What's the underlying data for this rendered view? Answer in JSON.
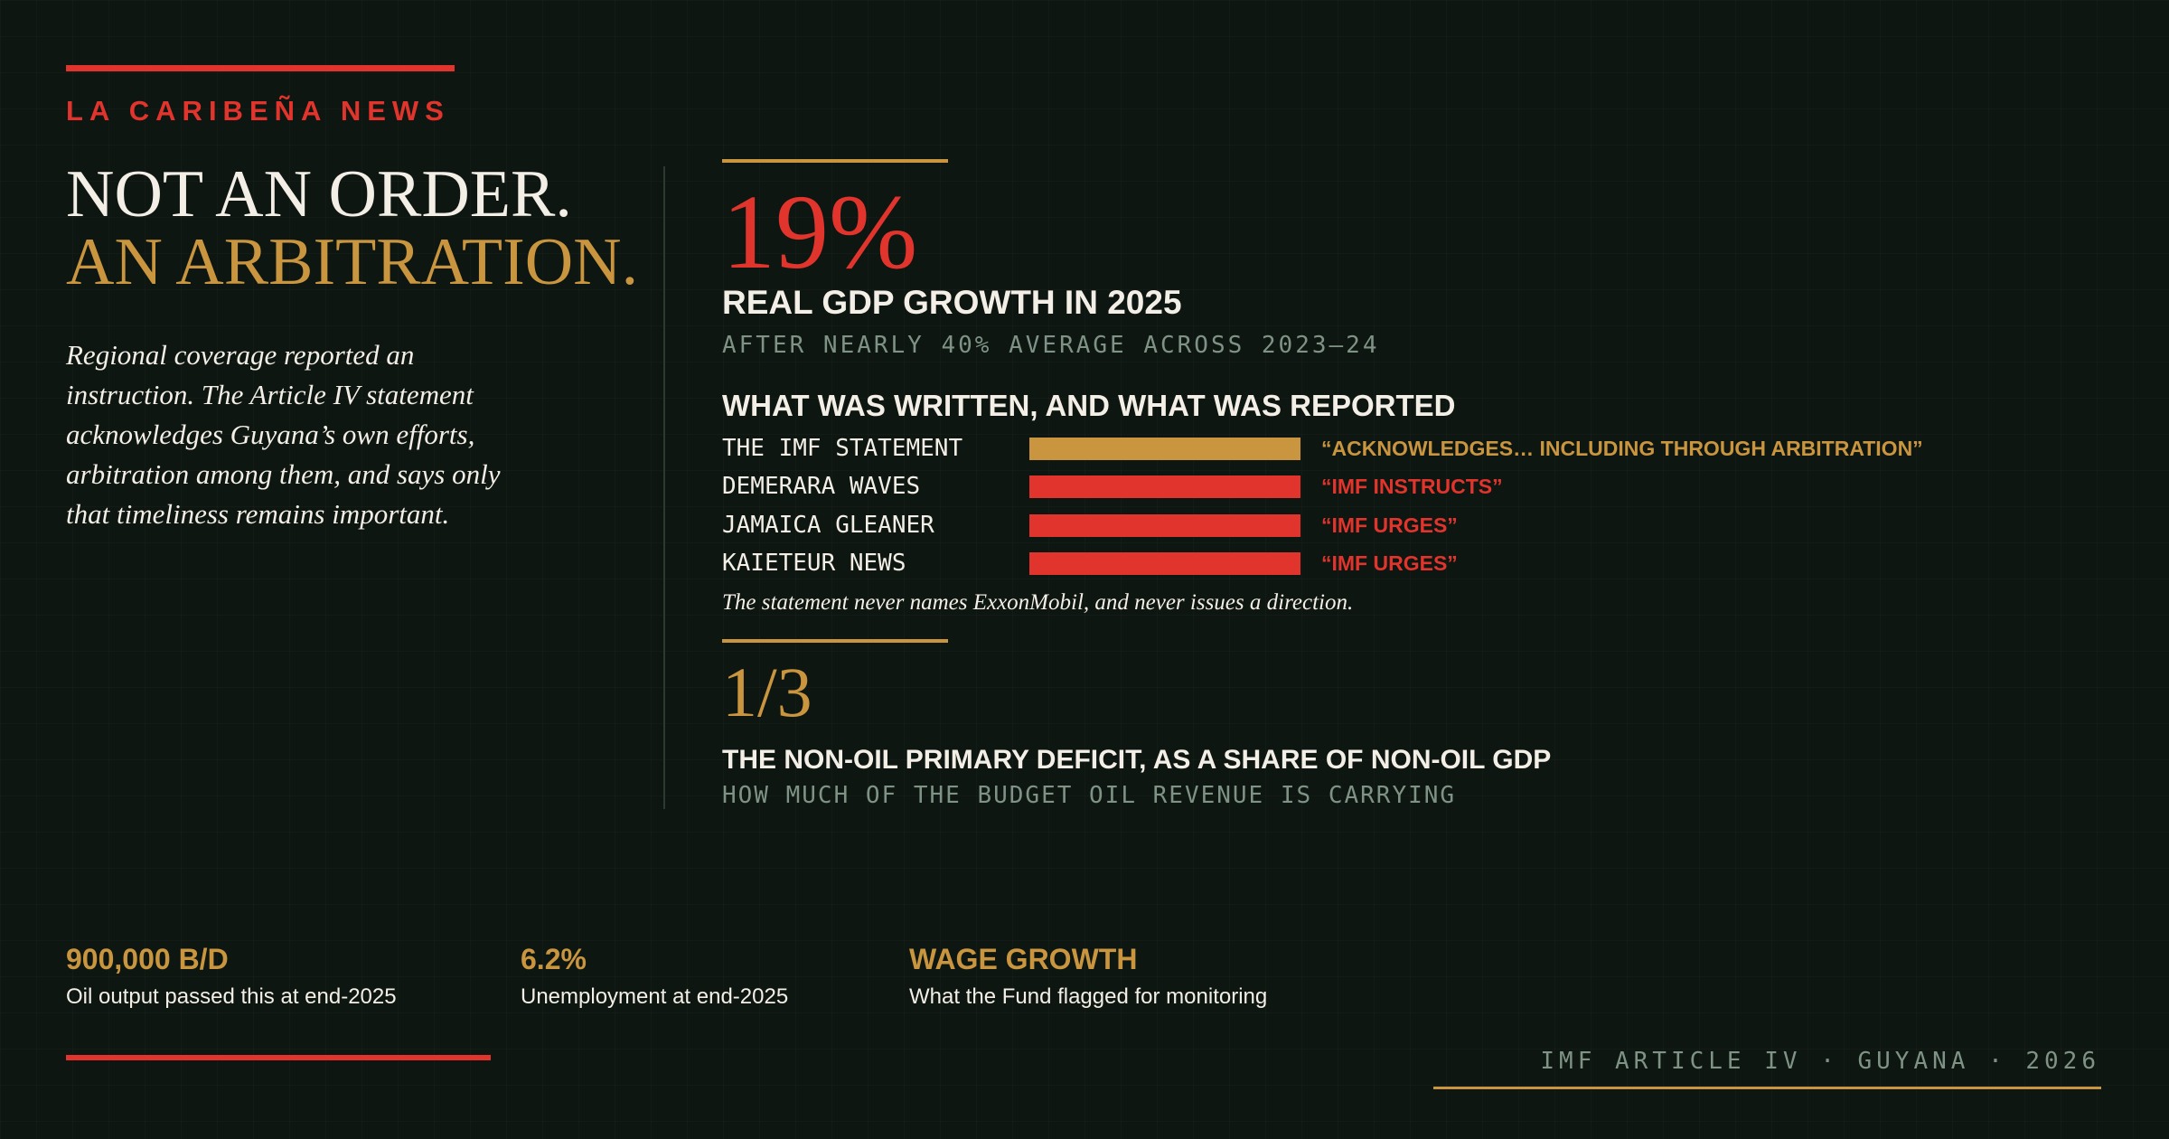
{
  "brand": "LA CARIBEÑA NEWS",
  "headline": {
    "line1": "NOT AN ORDER.",
    "line2": "AN ARBITRATION."
  },
  "deck": "Regional coverage reported an instruction. The Article IV statement acknowledges Guyana’s own efforts, arbitration among them, and says only that timeliness remains important.",
  "stat1": {
    "value": "19%",
    "label": "REAL GDP GROWTH IN 2025",
    "note": "AFTER NEARLY 40% AVERAGE ACROSS 2023–24"
  },
  "comparison": {
    "title": "WHAT WAS WRITTEN, AND WHAT WAS REPORTED",
    "rows": [
      {
        "source": "THE IMF STATEMENT",
        "quote": "“ACKNOWLEDGES… INCLUDING THROUGH ARBITRATION”"
      },
      {
        "source": "DEMERARA WAVES",
        "quote": "“IMF INSTRUCTS”"
      },
      {
        "source": "JAMAICA GLEANER",
        "quote": "“IMF URGES”"
      },
      {
        "source": "KAIETEUR NEWS",
        "quote": "“IMF URGES”"
      }
    ],
    "footnote": "The statement never names ExxonMobil, and never issues a direction."
  },
  "stat2": {
    "value": "1/3",
    "label": "THE NON-OIL PRIMARY DEFICIT, AS A SHARE OF NON-OIL GDP",
    "note": "HOW MUCH OF THE BUDGET OIL REVENUE IS CARRYING"
  },
  "facts": [
    {
      "value": "900,000 B/D",
      "label": "Oil output passed this at end-2025"
    },
    {
      "value": "6.2%",
      "label": "Unemployment at end-2025"
    },
    {
      "value": "WAGE GROWTH",
      "label": "What the Fund flagged for monitoring"
    }
  ],
  "footer": "IMF ARTICLE IV · GUYANA · 2026"
}
